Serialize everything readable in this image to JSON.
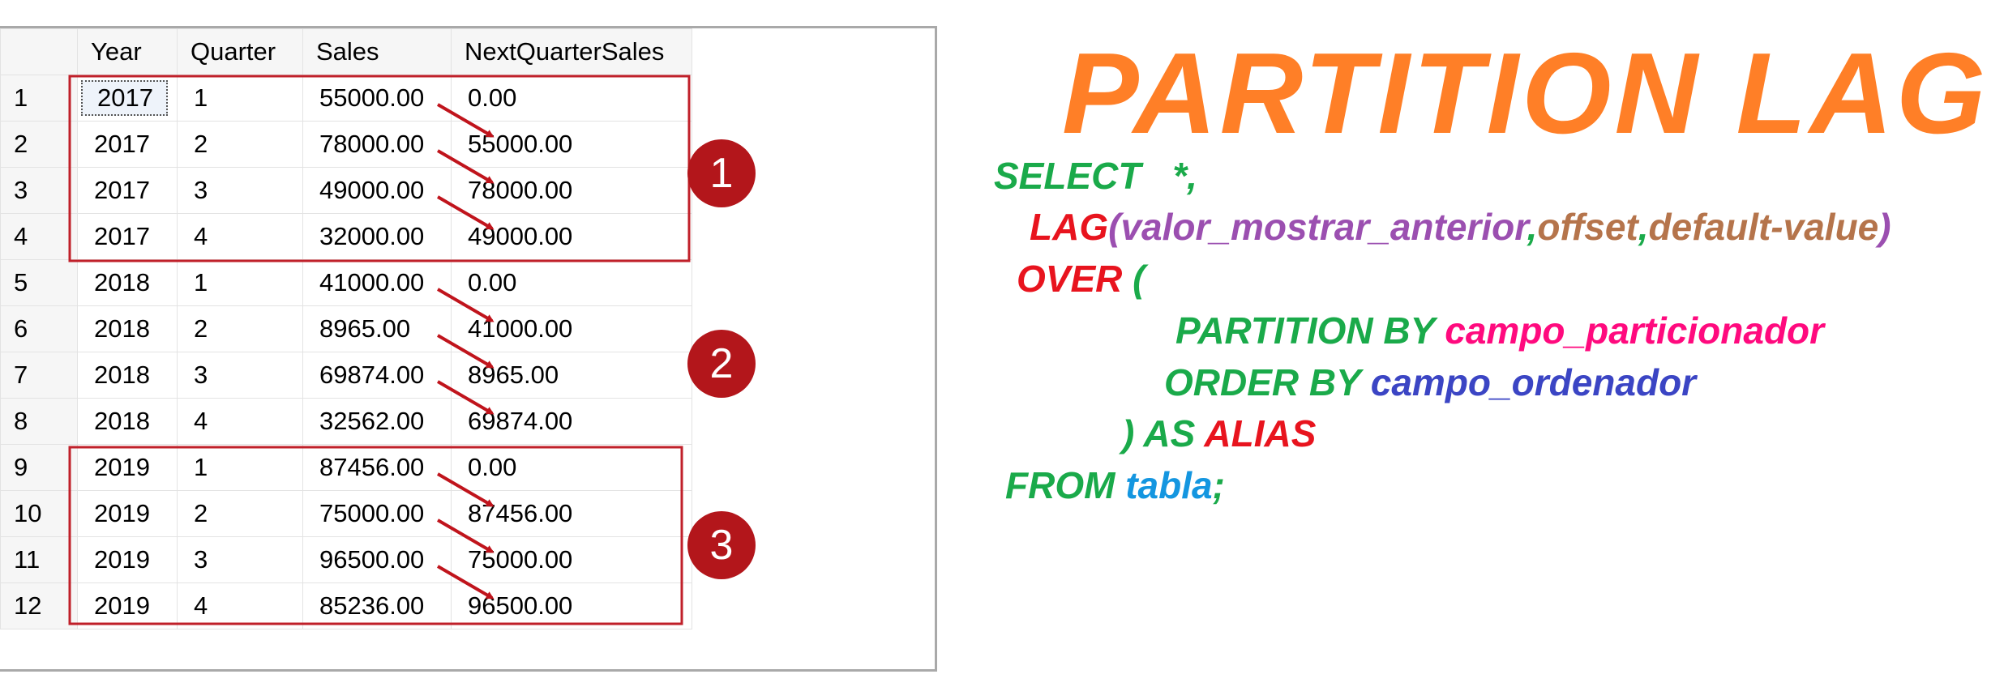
{
  "grid": {
    "columns": [
      "",
      "Year",
      "Quarter",
      "Sales",
      "NextQuarterSales"
    ],
    "rows": [
      [
        "1",
        "2017",
        "1",
        "55000.00",
        "0.00"
      ],
      [
        "2",
        "2017",
        "2",
        "78000.00",
        "55000.00"
      ],
      [
        "3",
        "2017",
        "3",
        "49000.00",
        "78000.00"
      ],
      [
        "4",
        "2017",
        "4",
        "32000.00",
        "49000.00"
      ],
      [
        "5",
        "2018",
        "1",
        "41000.00",
        "0.00"
      ],
      [
        "6",
        "2018",
        "2",
        "8965.00",
        "41000.00"
      ],
      [
        "7",
        "2018",
        "3",
        "69874.00",
        "8965.00"
      ],
      [
        "8",
        "2018",
        "4",
        "32562.00",
        "69874.00"
      ],
      [
        "9",
        "2019",
        "1",
        "87456.00",
        "0.00"
      ],
      [
        "10",
        "2019",
        "2",
        "75000.00",
        "87456.00"
      ],
      [
        "11",
        "2019",
        "3",
        "96500.00",
        "75000.00"
      ],
      [
        "12",
        "2019",
        "4",
        "85236.00",
        "96500.00"
      ]
    ],
    "selected_cell": {
      "row": 0,
      "col": 1
    }
  },
  "partitions": [
    {
      "badge": "1"
    },
    {
      "badge": "2"
    },
    {
      "badge": "3"
    }
  ],
  "colors": {
    "partition_border": "#c0202a",
    "badge_fill": "#b3161b",
    "arrow": "#c0141c",
    "title": "#ff7f27",
    "keyword_green": "#1aaa4a",
    "keyword_red": "#e8141e",
    "arg_purple": "#9b4fb0",
    "arg_brown": "#b5744b",
    "param_pink": "#ff0a7e",
    "param_blue": "#3b45c4",
    "table_cyan": "#1496e0"
  },
  "sql": {
    "title": "PARTITION LAG",
    "select_kw": "SELECT",
    "select_rest": "*,",
    "lag_kw": "LAG",
    "open_paren": "(",
    "arg1": "valor_mostrar_anterior",
    "comma1": ",",
    "arg2": "offset",
    "comma2": ",",
    "arg3": "default-value",
    "close_paren": ")",
    "over_kw": "OVER",
    "over_paren": "(",
    "partition_kw": "PARTITION BY",
    "partition_field": "campo_particionador",
    "order_kw": "ORDER BY",
    "order_field": "campo_ordenador",
    "close_alias": ") AS",
    "alias": "ALIAS",
    "from_kw": "FROM",
    "table": "tabla",
    "semicolon": ";"
  }
}
